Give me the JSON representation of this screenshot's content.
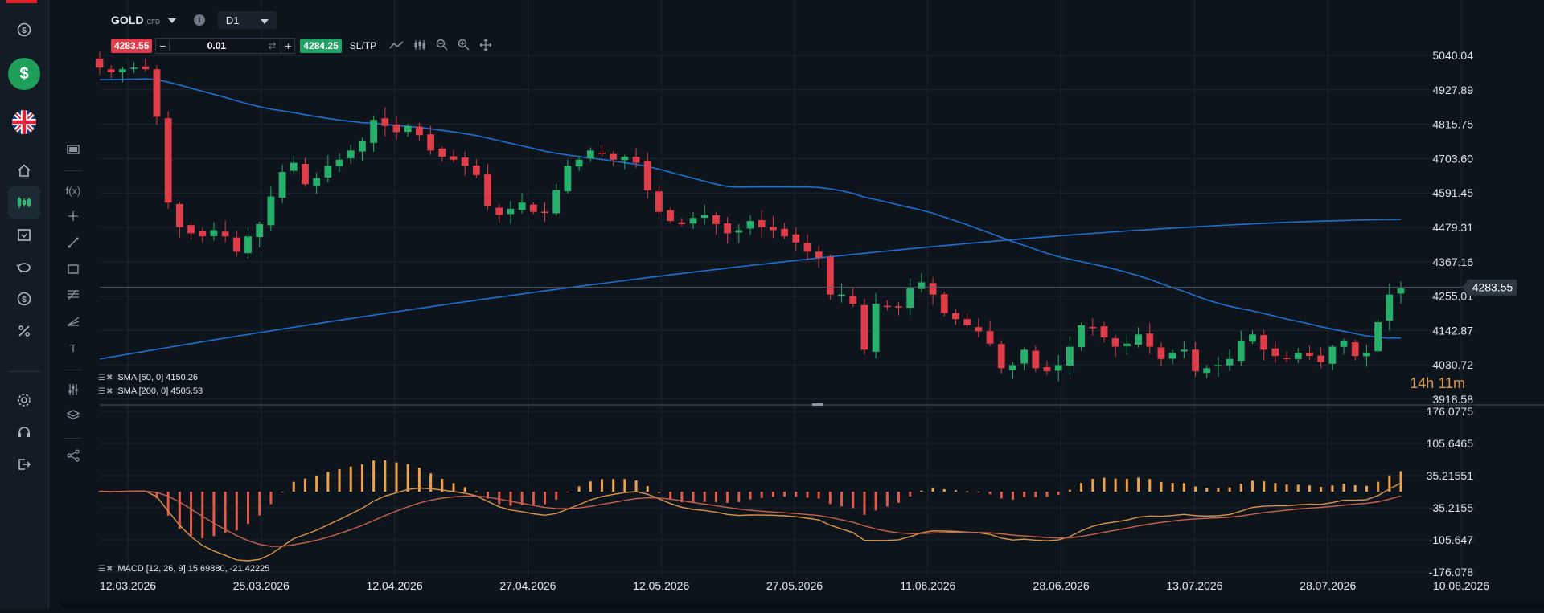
{
  "header": {
    "symbol": "GOLD",
    "symbol_type": "CFD",
    "timeframe": "D1",
    "sell_price": "4283.55",
    "buy_price": "4284.25",
    "quantity": "0.01",
    "sltp_label": "SL/TP",
    "countdown": "14h 11m"
  },
  "legend": {
    "sma50": "SMA [50, 0] 4150.26",
    "sma200": "SMA [200, 0] 4505.53",
    "macd": "MACD [12, 26, 9] 15.69880, -21.42225"
  },
  "colors": {
    "up": "#26b06b",
    "down": "#e03d4a",
    "sma": "#1e6fd0",
    "macd_line": "#d9954a",
    "signal_line": "#c8624d",
    "hist_pos": "#f0a24a",
    "hist_neg": "#e05a4a",
    "brand": "#e3222c"
  },
  "sidebar": {
    "icons": [
      "balance-icon",
      "deposit-icon",
      "uk-flag-icon",
      "home-icon",
      "chart-icon",
      "calendar-icon",
      "piggy-bank-icon",
      "dollar-icon",
      "percent-icon",
      "settings-icon",
      "headset-icon",
      "logout-icon"
    ]
  },
  "tools": {
    "icons": [
      "screenshot-icon",
      "function-icon",
      "crosshair-icon",
      "trendline-icon",
      "rectangle-icon",
      "fibonacci-icon",
      "pitchfork-icon",
      "text-icon",
      "indicator-settings-icon",
      "layers-icon",
      "share-icon"
    ]
  },
  "chart_data": {
    "type": "candlestick",
    "price_axis_ticks": [
      "5040.04",
      "4927.89",
      "4815.75",
      "4703.60",
      "4591.45",
      "4479.31",
      "4367.16",
      "4255.01",
      "4142.87",
      "4030.72",
      "3918.58"
    ],
    "macd_axis_ticks": [
      "176.0775",
      "105.6465",
      "35.21551",
      "-35.2155",
      "-105.647",
      "-176.078"
    ],
    "date_ticks": [
      "12.03.2026",
      "25.03.2026",
      "12.04.2026",
      "27.04.2026",
      "12.05.2026",
      "27.05.2026",
      "11.06.2026",
      "28.06.2026",
      "13.07.2026",
      "28.07.2026",
      "10.08.2026"
    ],
    "current_price": 4283.55,
    "ylim": [
      3918.58,
      5040.04
    ],
    "macd_ylim": [
      -176.078,
      176.0775
    ],
    "closes": [
      5000,
      4985,
      4995,
      5000,
      4995,
      4840,
      4560,
      4480,
      4460,
      4450,
      4470,
      4450,
      4400,
      4450,
      4490,
      4580,
      4660,
      4690,
      4620,
      4640,
      4680,
      4700,
      4730,
      4760,
      4830,
      4810,
      4790,
      4810,
      4780,
      4730,
      4710,
      4700,
      4680,
      4650,
      4550,
      4520,
      4540,
      4560,
      4530,
      4530,
      4600,
      4680,
      4700,
      4730,
      4720,
      4700,
      4710,
      4690,
      4600,
      4530,
      4500,
      4490,
      4510,
      4520,
      4490,
      4460,
      4470,
      4500,
      4480,
      4470,
      4450,
      4430,
      4400,
      4380,
      4260,
      4260,
      4230,
      4080,
      4230,
      4220,
      4220,
      4280,
      4300,
      4260,
      4200,
      4180,
      4160,
      4140,
      4100,
      4020,
      4030,
      4080,
      4020,
      4010,
      4030,
      4090,
      4160,
      4150,
      4120,
      4090,
      4100,
      4130,
      4090,
      4050,
      4070,
      4080,
      4010,
      4020,
      4030,
      4050,
      4110,
      4130,
      4080,
      4060,
      4050,
      4070,
      4060,
      4040,
      4090,
      4110,
      4060,
      4070,
      4170,
      4260,
      4280
    ]
  }
}
